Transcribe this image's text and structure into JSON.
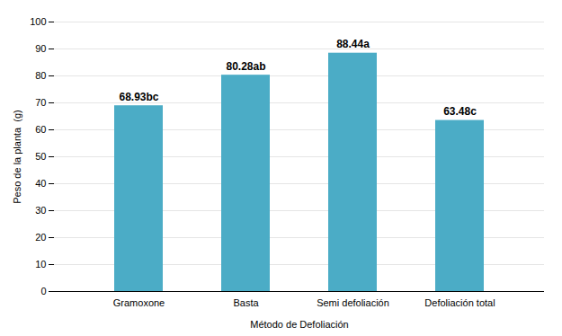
{
  "chart_data": {
    "type": "bar",
    "categories": [
      "Gramoxone",
      "Basta",
      "Semi defoliación",
      "Defoliación total"
    ],
    "values": [
      68.93,
      80.28,
      88.44,
      63.48
    ],
    "value_labels": [
      "68.93bc",
      "80.28ab",
      "88.44a",
      "63.48c"
    ],
    "data_labels": true,
    "color": "#4BACC6",
    "xlabel": "Método de Defoliación",
    "ylabel": "Peso de la planta  (g)",
    "ylim": [
      0,
      100
    ],
    "yticks": [
      0,
      10,
      20,
      30,
      40,
      50,
      60,
      70,
      80,
      90,
      100
    ],
    "grid": true
  }
}
